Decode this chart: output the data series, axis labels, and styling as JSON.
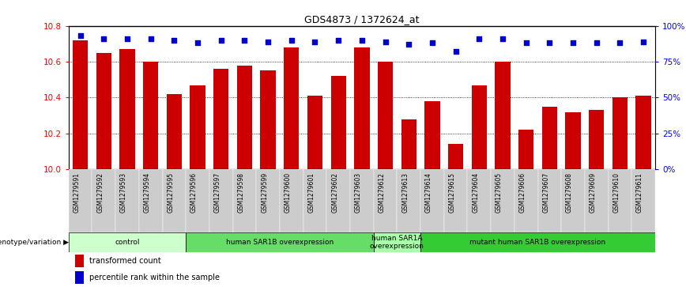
{
  "title": "GDS4873 / 1372624_at",
  "samples": [
    "GSM1279591",
    "GSM1279592",
    "GSM1279593",
    "GSM1279594",
    "GSM1279595",
    "GSM1279596",
    "GSM1279597",
    "GSM1279598",
    "GSM1279599",
    "GSM1279600",
    "GSM1279601",
    "GSM1279602",
    "GSM1279603",
    "GSM1279612",
    "GSM1279613",
    "GSM1279614",
    "GSM1279615",
    "GSM1279604",
    "GSM1279605",
    "GSM1279606",
    "GSM1279607",
    "GSM1279608",
    "GSM1279609",
    "GSM1279610",
    "GSM1279611"
  ],
  "bar_values": [
    10.72,
    10.65,
    10.67,
    10.6,
    10.42,
    10.47,
    10.56,
    10.58,
    10.55,
    10.68,
    10.41,
    10.52,
    10.68,
    10.6,
    10.28,
    10.38,
    10.14,
    10.47,
    10.6,
    10.22,
    10.35,
    10.32,
    10.33,
    10.4,
    10.41
  ],
  "percentile_values": [
    93,
    91,
    91,
    91,
    90,
    88,
    90,
    90,
    89,
    90,
    89,
    90,
    90,
    89,
    87,
    88,
    82,
    91,
    91,
    88,
    88,
    88,
    88,
    88,
    89
  ],
  "bar_color": "#cc0000",
  "dot_color": "#0000cc",
  "ylim_left": [
    10.0,
    10.8
  ],
  "ylim_right": [
    0,
    100
  ],
  "yticks_left": [
    10.0,
    10.2,
    10.4,
    10.6,
    10.8
  ],
  "yticks_right": [
    0,
    25,
    50,
    75,
    100
  ],
  "ytick_labels_right": [
    "0%",
    "25%",
    "50%",
    "75%",
    "100%"
  ],
  "groups": [
    {
      "label": "control",
      "start": 0,
      "end": 4,
      "color": "#ccffcc"
    },
    {
      "label": "human SAR1B overexpression",
      "start": 5,
      "end": 12,
      "color": "#66dd66"
    },
    {
      "label": "human SAR1A\noverexpression",
      "start": 13,
      "end": 14,
      "color": "#aaffaa"
    },
    {
      "label": "mutant human SAR1B overexpression",
      "start": 15,
      "end": 24,
      "color": "#33cc33"
    }
  ],
  "group_label": "genotype/variation",
  "legend_bar_label": "transformed count",
  "legend_dot_label": "percentile rank within the sample"
}
